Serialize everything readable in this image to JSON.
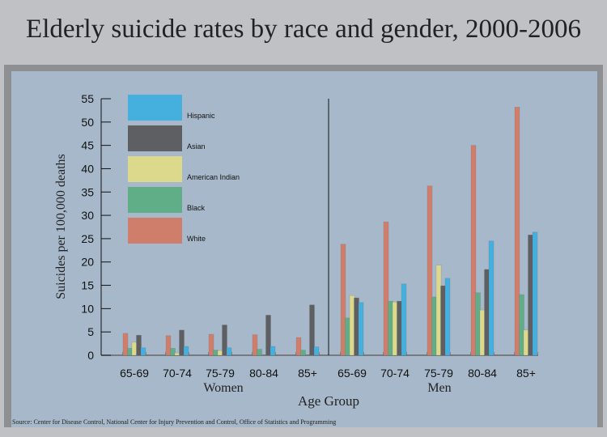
{
  "title": "Elderly suicide rates by race and gender, 2000-2006",
  "source": "Source: Center for Disease Control, National Center for Injury Prevention and Control, Office of Statistics and Programming",
  "chart_data": {
    "type": "bar",
    "title": "Elderly suicide rates by race and gender, 2000-2006",
    "xlabel": "Age Group",
    "ylabel": "Suicides per 100,000 deaths",
    "ylim": [
      0,
      55
    ],
    "yticks": [
      0,
      5,
      10,
      15,
      20,
      25,
      30,
      35,
      40,
      45,
      50,
      55
    ],
    "legend_placement": "top-left",
    "groups": [
      {
        "name": "Women",
        "categories": [
          "65-69",
          "70-74",
          "75-79",
          "80-84",
          "85+"
        ],
        "series": [
          {
            "name": "White",
            "values": [
              4.7,
              4.2,
              4.5,
              4.4,
              3.8
            ]
          },
          {
            "name": "Black",
            "values": [
              1.5,
              1.5,
              1.1,
              1.3,
              1.1
            ]
          },
          {
            "name": "American Indian",
            "values": [
              2.8,
              0.5,
              1.0,
              0,
              0
            ]
          },
          {
            "name": "Asian",
            "values": [
              4.3,
              5.4,
              6.5,
              8.6,
              10.8
            ]
          },
          {
            "name": "Hispanic",
            "values": [
              1.6,
              1.9,
              1.6,
              1.9,
              1.8
            ]
          }
        ]
      },
      {
        "name": "Men",
        "categories": [
          "65-69",
          "70-74",
          "75-79",
          "80-84",
          "85+"
        ],
        "series": [
          {
            "name": "White",
            "values": [
              23.8,
              28.6,
              36.3,
              45.0,
              53.2
            ]
          },
          {
            "name": "Black",
            "values": [
              8.0,
              11.6,
              12.5,
              13.4,
              13.0
            ]
          },
          {
            "name": "American Indian",
            "values": [
              12.8,
              11.4,
              19.3,
              9.7,
              5.4
            ]
          },
          {
            "name": "Asian",
            "values": [
              12.3,
              11.6,
              14.9,
              18.4,
              25.8
            ]
          },
          {
            "name": "Hispanic",
            "values": [
              11.3,
              15.3,
              16.5,
              24.5,
              26.4
            ]
          }
        ]
      }
    ],
    "legend": [
      {
        "name": "Hispanic",
        "color": "#45b0de"
      },
      {
        "name": "Asian",
        "color": "#5e5f63"
      },
      {
        "name": "American Indian",
        "color": "#dcd98c"
      },
      {
        "name": "Black",
        "color": "#5fae88"
      },
      {
        "name": "White",
        "color": "#d07e6c"
      }
    ]
  }
}
